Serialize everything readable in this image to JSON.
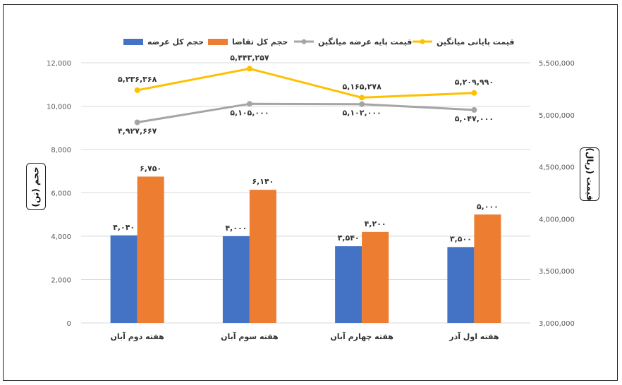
{
  "chart_data": {
    "type": "bar",
    "categories": [
      "هفته دوم آبان",
      "هفته سوم آبان",
      "هفته چهارم آبان",
      "هفته اول آذر"
    ],
    "series": [
      {
        "name": "حجم کل عرضه",
        "kind": "bar",
        "axis": "left",
        "color": "#4472C4",
        "values": [
          4040,
          4000,
          3540,
          3500
        ],
        "labels": [
          "۴,۰۴۰",
          "۴,۰۰۰",
          "۳,۵۴۰",
          "۳,۵۰۰"
        ]
      },
      {
        "name": "حجم کل تقاضا",
        "kind": "bar",
        "axis": "left",
        "color": "#ED7D31",
        "values": [
          6750,
          6140,
          4200,
          5000
        ],
        "labels": [
          "۶,۷۵۰",
          "۶,۱۴۰",
          "۴,۲۰۰",
          "۵,۰۰۰"
        ]
      },
      {
        "name": "قیمت پایه عرضه میانگین",
        "kind": "line",
        "axis": "right",
        "color": "#A5A5A5",
        "values": [
          4927667,
          5105000,
          5102000,
          5047000
        ],
        "labels": [
          "۴,۹۲۷,۶۶۷",
          "۵,۱۰۵,۰۰۰",
          "۵,۱۰۲,۰۰۰",
          "۵,۰۴۷,۰۰۰"
        ]
      },
      {
        "name": "قیمت پایانی میانگین",
        "kind": "line",
        "axis": "right",
        "color": "#FFC000",
        "values": [
          5236368,
          5443257,
          5165278,
          5209990
        ],
        "labels": [
          "۵,۲۳۶,۳۶۸",
          "۵,۴۴۳,۲۵۷",
          "۵,۱۶۵,۲۷۸",
          "۵,۲۰۹,۹۹۰"
        ]
      }
    ],
    "y_left": {
      "label": "حجم (تن)",
      "ylim": [
        0,
        12000
      ],
      "ticks": [
        0,
        2000,
        4000,
        6000,
        8000,
        10000,
        12000
      ],
      "tick_labels": [
        "0",
        "2,000",
        "4,000",
        "6,000",
        "8,000",
        "10,000",
        "12,000"
      ]
    },
    "y_right": {
      "label": "قیمت (ریال)",
      "ylim": [
        3000000,
        5500000
      ],
      "ticks": [
        3000000,
        3500000,
        4000000,
        4500000,
        5000000,
        5500000
      ],
      "tick_labels": [
        "3,000,000",
        "3,500,000",
        "4,000,000",
        "4,500,000",
        "5,000,000",
        "5,500,000"
      ]
    },
    "legend_position": "top",
    "legend_order": [
      "حجم کل عرضه",
      "حجم کل تقاضا",
      "قیمت پایه عرضه میانگین",
      "قیمت پایانی میانگین"
    ],
    "grid": true
  }
}
